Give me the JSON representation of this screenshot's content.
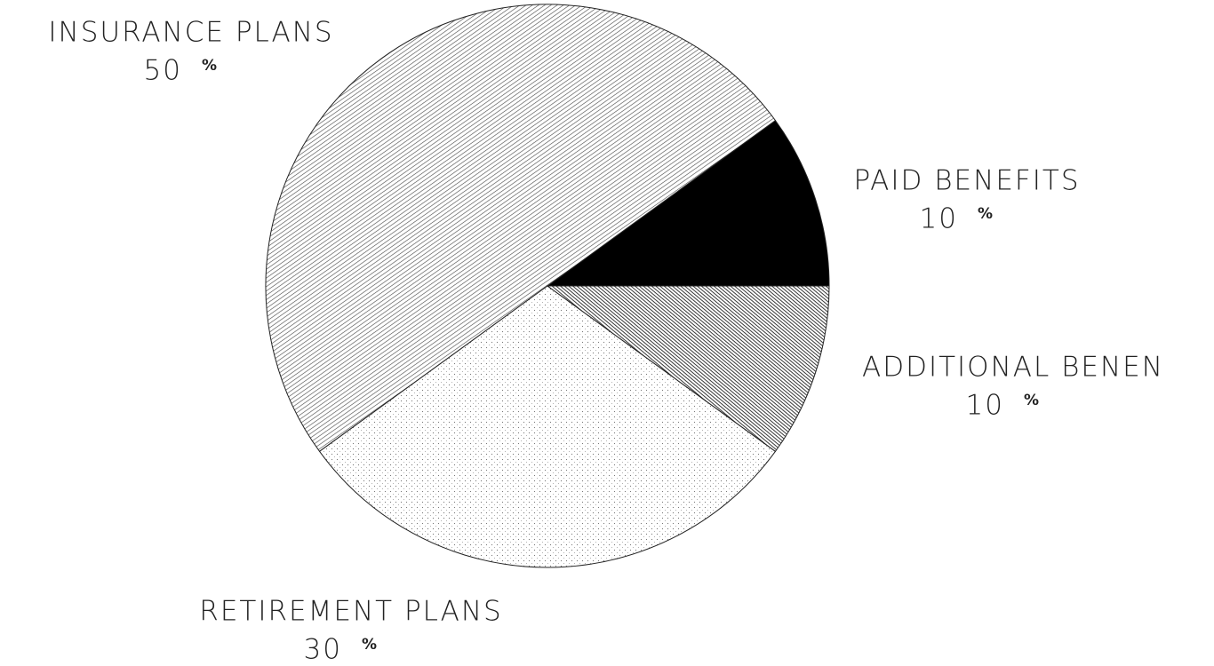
{
  "chart_data": {
    "type": "pie",
    "categories": [
      "PAID BENEFITS",
      "INSURANCE PLANS",
      "RETIREMENT PLANS",
      "ADDITIONAL BENEN"
    ],
    "values": [
      10,
      50,
      30,
      10
    ],
    "unit": "%"
  }
}
